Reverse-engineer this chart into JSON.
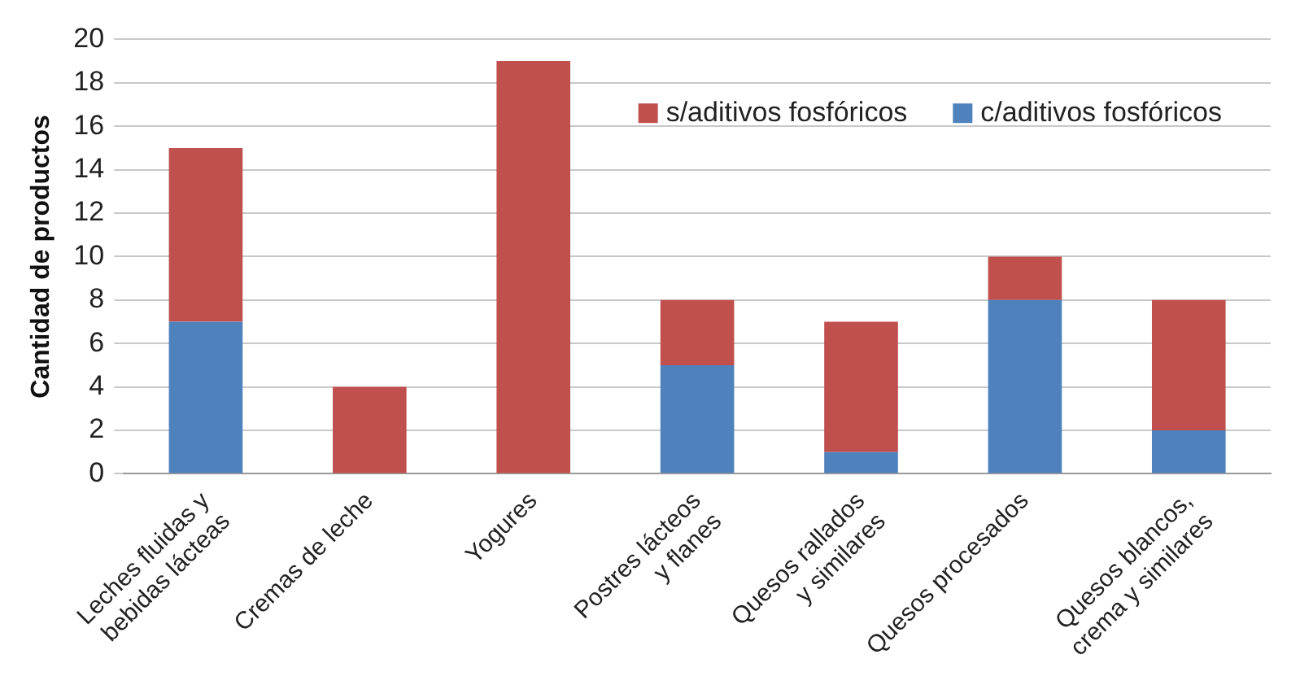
{
  "chart_data": {
    "type": "bar",
    "ylabel": "Cantidad de productos",
    "stacked": true,
    "categories": [
      "Leches fluidas y bebidas lácteas",
      "Cremas de leche",
      "Yogures",
      "Postres lácteos y flanes",
      "Quesos rallados y similares",
      "Quesos procesados",
      "Quesos blancos, crema y similares"
    ],
    "series": [
      {
        "name": "c/aditivos fosfóricos",
        "color": "#4f81bd",
        "values": [
          7,
          0,
          0,
          5,
          1,
          8,
          2
        ]
      },
      {
        "name": "s/aditivos fosfóricos",
        "color": "#c0504d",
        "values": [
          8,
          4,
          19,
          3,
          6,
          2,
          6
        ]
      }
    ],
    "ylim": [
      0,
      20
    ],
    "yticks": [
      0,
      2,
      4,
      6,
      8,
      10,
      12,
      14,
      16,
      18,
      20
    ],
    "grid": "y",
    "legend": "top right"
  }
}
